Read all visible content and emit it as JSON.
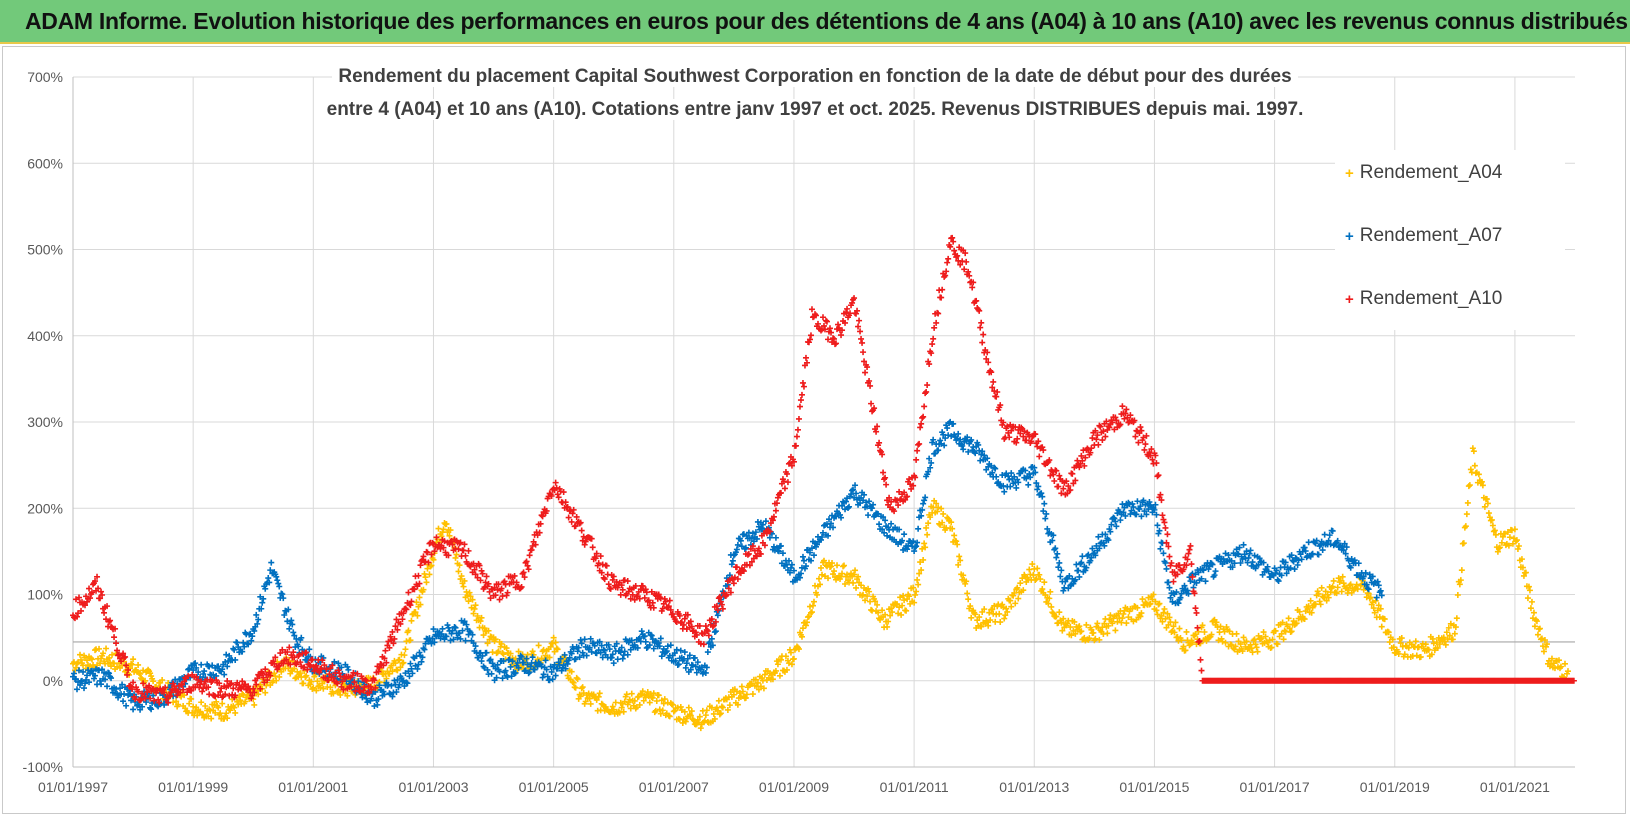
{
  "header": {
    "title": "ADAM Informe. Evolution historique des performances en euros pour des détentions de 4 ans (A04) à 10 ans (A10) avec les revenus connus distribués"
  },
  "colors": {
    "header_bg": "#72c97a",
    "A04": "#ffc000",
    "A07": "#0070c0",
    "A10": "#ee1c1c",
    "grid": "#d9d9d9",
    "text": "#595959"
  },
  "chart_data": {
    "type": "scatter",
    "title_line1": "Rendement du placement Capital Southwest Corporation en fonction de la date de début pour des durées",
    "title_line2": "entre 4 (A04) et 10 ans (A10). Cotations entre janv 1997 et oct. 2025.  Revenus DISTRIBUES depuis mai. 1997.",
    "xlabel": "",
    "ylabel": "",
    "xlim": [
      1997.0,
      2022.0
    ],
    "ylim": [
      -100,
      700
    ],
    "y_ticks": [
      "-100%",
      "0%",
      "100%",
      "200%",
      "300%",
      "400%",
      "500%",
      "600%",
      "700%"
    ],
    "x_ticks": [
      "01/01/1997",
      "01/01/1999",
      "01/01/2001",
      "01/01/2003",
      "01/01/2005",
      "01/01/2007",
      "01/01/2009",
      "01/01/2011",
      "01/01/2013",
      "01/01/2015",
      "01/01/2017",
      "01/01/2019",
      "01/01/2021"
    ],
    "grid": true,
    "legend_position": "top-right",
    "reference_line": 45,
    "series": [
      {
        "name": "Rendement_A04",
        "color": "#ffc000",
        "points": [
          [
            1997.0,
            20
          ],
          [
            1997.5,
            28
          ],
          [
            1998.0,
            15
          ],
          [
            1998.5,
            -10
          ],
          [
            1999.0,
            -30
          ],
          [
            1999.5,
            -35
          ],
          [
            2000.0,
            -20
          ],
          [
            2000.5,
            20
          ],
          [
            2001.0,
            0
          ],
          [
            2001.5,
            -10
          ],
          [
            2002.0,
            -5
          ],
          [
            2002.5,
            30
          ],
          [
            2003.0,
            150
          ],
          [
            2003.2,
            190
          ],
          [
            2003.5,
            110
          ],
          [
            2004.0,
            40
          ],
          [
            2004.5,
            20
          ],
          [
            2005.0,
            40
          ],
          [
            2005.5,
            -20
          ],
          [
            2006.0,
            -30
          ],
          [
            2006.5,
            -20
          ],
          [
            2007.0,
            -35
          ],
          [
            2007.5,
            -45
          ],
          [
            2008.0,
            -20
          ],
          [
            2008.5,
            0
          ],
          [
            2009.0,
            30
          ],
          [
            2009.5,
            130
          ],
          [
            2010.0,
            120
          ],
          [
            2010.5,
            70
          ],
          [
            2011.0,
            100
          ],
          [
            2011.3,
            200
          ],
          [
            2011.6,
            180
          ],
          [
            2012.0,
            70
          ],
          [
            2012.5,
            80
          ],
          [
            2013.0,
            130
          ],
          [
            2013.5,
            60
          ],
          [
            2014.0,
            55
          ],
          [
            2014.5,
            75
          ],
          [
            2015.0,
            90
          ],
          [
            2015.5,
            45
          ],
          [
            2016.0,
            60
          ],
          [
            2016.5,
            40
          ],
          [
            2017.0,
            50
          ],
          [
            2017.5,
            80
          ],
          [
            2018.0,
            110
          ],
          [
            2018.5,
            110
          ],
          [
            2019.0,
            40
          ],
          [
            2019.5,
            35
          ],
          [
            2020.0,
            60
          ],
          [
            2020.3,
            260
          ],
          [
            2020.7,
            160
          ],
          [
            2021.0,
            170
          ],
          [
            2021.3,
            80
          ],
          [
            2021.6,
            20
          ],
          [
            2021.9,
            10
          ]
        ]
      },
      {
        "name": "Rendement_A07",
        "color": "#0070c0",
        "points": [
          [
            1997.0,
            0
          ],
          [
            1997.5,
            5
          ],
          [
            1998.0,
            -25
          ],
          [
            1998.5,
            -20
          ],
          [
            1999.0,
            10
          ],
          [
            1999.5,
            15
          ],
          [
            2000.0,
            60
          ],
          [
            2000.3,
            130
          ],
          [
            2000.7,
            50
          ],
          [
            2001.0,
            20
          ],
          [
            2001.5,
            10
          ],
          [
            2002.0,
            -20
          ],
          [
            2002.5,
            0
          ],
          [
            2003.0,
            50
          ],
          [
            2003.5,
            60
          ],
          [
            2004.0,
            10
          ],
          [
            2004.5,
            20
          ],
          [
            2005.0,
            10
          ],
          [
            2005.5,
            40
          ],
          [
            2006.0,
            30
          ],
          [
            2006.5,
            50
          ],
          [
            2007.0,
            30
          ],
          [
            2007.5,
            10
          ],
          [
            2008.0,
            150
          ],
          [
            2008.5,
            180
          ],
          [
            2009.0,
            120
          ],
          [
            2009.5,
            170
          ],
          [
            2010.0,
            220
          ],
          [
            2010.5,
            180
          ],
          [
            2011.0,
            150
          ],
          [
            2011.3,
            270
          ],
          [
            2011.6,
            290
          ],
          [
            2012.0,
            270
          ],
          [
            2012.5,
            230
          ],
          [
            2013.0,
            240
          ],
          [
            2013.5,
            110
          ],
          [
            2014.0,
            150
          ],
          [
            2014.5,
            200
          ],
          [
            2015.0,
            200
          ],
          [
            2015.3,
            90
          ],
          [
            2015.7,
            120
          ],
          [
            2016.0,
            130
          ],
          [
            2016.5,
            150
          ],
          [
            2017.0,
            120
          ],
          [
            2017.5,
            150
          ],
          [
            2018.0,
            165
          ],
          [
            2018.5,
            120
          ],
          [
            2018.8,
            100
          ]
        ]
      },
      {
        "name": "Rendement_A10",
        "color": "#ee1c1c",
        "points": [
          [
            1997.0,
            80
          ],
          [
            1997.4,
            110
          ],
          [
            1998.0,
            -10
          ],
          [
            1998.5,
            -20
          ],
          [
            1999.0,
            0
          ],
          [
            1999.5,
            -10
          ],
          [
            2000.0,
            -10
          ],
          [
            2000.5,
            30
          ],
          [
            2001.0,
            20
          ],
          [
            2001.5,
            0
          ],
          [
            2002.0,
            -5
          ],
          [
            2002.5,
            80
          ],
          [
            2003.0,
            160
          ],
          [
            2003.5,
            150
          ],
          [
            2004.0,
            100
          ],
          [
            2004.5,
            120
          ],
          [
            2005.0,
            230
          ],
          [
            2005.5,
            170
          ],
          [
            2006.0,
            110
          ],
          [
            2006.5,
            100
          ],
          [
            2007.0,
            80
          ],
          [
            2007.5,
            50
          ],
          [
            2008.0,
            120
          ],
          [
            2008.5,
            160
          ],
          [
            2009.0,
            260
          ],
          [
            2009.3,
            420
          ],
          [
            2009.7,
            400
          ],
          [
            2010.0,
            440
          ],
          [
            2010.3,
            320
          ],
          [
            2010.6,
            200
          ],
          [
            2011.0,
            230
          ],
          [
            2011.3,
            400
          ],
          [
            2011.6,
            510
          ],
          [
            2011.9,
            480
          ],
          [
            2012.2,
            380
          ],
          [
            2012.5,
            290
          ],
          [
            2013.0,
            280
          ],
          [
            2013.5,
            220
          ],
          [
            2014.0,
            280
          ],
          [
            2014.5,
            310
          ],
          [
            2015.0,
            260
          ],
          [
            2015.3,
            120
          ],
          [
            2015.6,
            150
          ],
          [
            2015.8,
            0
          ],
          [
            2018.0,
            0
          ],
          [
            2020.0,
            0
          ],
          [
            2022.0,
            0
          ]
        ]
      }
    ]
  }
}
